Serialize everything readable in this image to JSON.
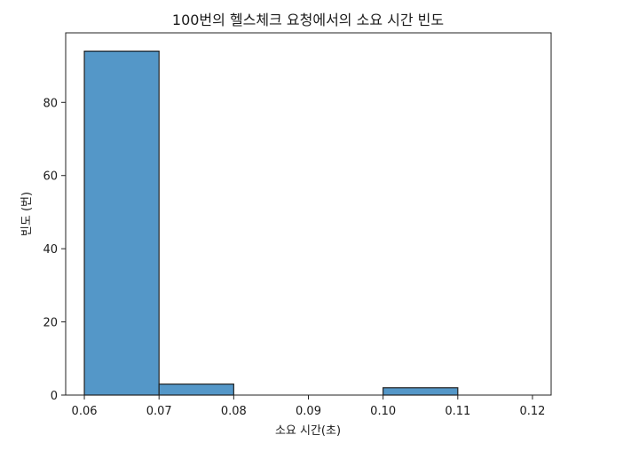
{
  "chart_data": {
    "type": "bar",
    "title": "100번의 헬스체크 요청에서의 소요 시간 빈도",
    "xlabel": "소요 시간(초)",
    "ylabel": "빈도 (번)",
    "xlim": [
      0.0575,
      0.1225
    ],
    "ylim": [
      0,
      99
    ],
    "x_ticks": [
      "0.06",
      "0.07",
      "0.08",
      "0.09",
      "0.10",
      "0.11",
      "0.12"
    ],
    "x_tick_values": [
      0.06,
      0.07,
      0.08,
      0.09,
      0.1,
      0.11,
      0.12
    ],
    "y_ticks": [
      "0",
      "20",
      "40",
      "60",
      "80"
    ],
    "y_tick_values": [
      0,
      20,
      40,
      60,
      80
    ],
    "bins": [
      {
        "start": 0.06,
        "end": 0.07,
        "count": 94
      },
      {
        "start": 0.07,
        "end": 0.08,
        "count": 3
      },
      {
        "start": 0.08,
        "end": 0.09,
        "count": 0
      },
      {
        "start": 0.09,
        "end": 0.1,
        "count": 0
      },
      {
        "start": 0.1,
        "end": 0.11,
        "count": 2
      },
      {
        "start": 0.11,
        "end": 0.12,
        "count": 0
      }
    ],
    "bar_color": "#5497c8",
    "edge_color": "#222222",
    "grid": false,
    "legend": "none"
  }
}
